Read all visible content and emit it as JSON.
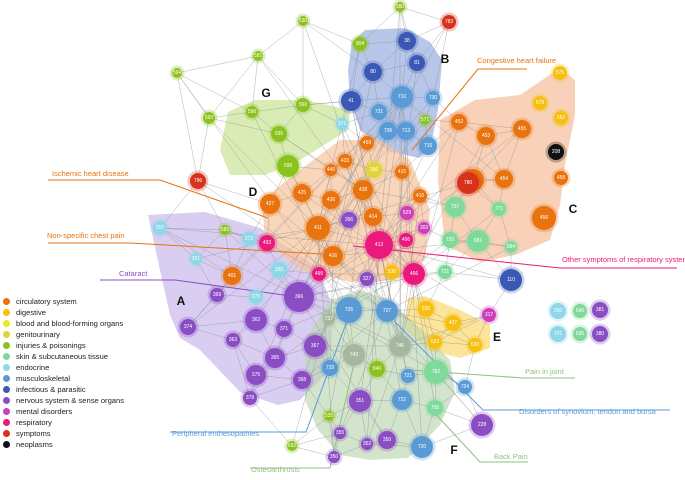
{
  "colors": {
    "circulatory": "#e8730f",
    "digestive": "#f6bf12",
    "blood": "#eaea1e",
    "genitourinary": "#e3d33a",
    "injuries": "#8cc21d",
    "skin": "#7fd99b",
    "endocrine": "#8ed6e8",
    "musculoskeletal": "#5b9bd5",
    "infectious": "#3a58b5",
    "nervous": "#8a4dc4",
    "mental": "#cc3fb8",
    "respiratory": "#e9197d",
    "symptoms": "#d9321c",
    "neoplasms": "#111111",
    "pale": "#a6b7a0"
  },
  "legend": [
    {
      "label": "circulatory system",
      "color": "circulatory"
    },
    {
      "label": "digestive",
      "color": "digestive"
    },
    {
      "label": "blood and blood-forming organs",
      "color": "blood"
    },
    {
      "label": "genitourinary",
      "color": "genitourinary"
    },
    {
      "label": "injuries & poisonings",
      "color": "injuries"
    },
    {
      "label": "skin & subcutaneous tissue",
      "color": "skin"
    },
    {
      "label": "endocrine",
      "color": "endocrine"
    },
    {
      "label": "musculoskeletal",
      "color": "musculoskeletal"
    },
    {
      "label": "infectious & parasitic",
      "color": "infectious"
    },
    {
      "label": "nervous system & sense organs",
      "color": "nervous"
    },
    {
      "label": "mental disorders",
      "color": "mental"
    },
    {
      "label": "respiratory",
      "color": "respiratory"
    },
    {
      "label": "symptoms",
      "color": "symptoms"
    },
    {
      "label": "neoplasms",
      "color": "neoplasms"
    }
  ],
  "clusters": {
    "A": "A",
    "B": "B",
    "C": "C",
    "D": "D",
    "E": "E",
    "F": "F",
    "G": "G"
  },
  "annotations": {
    "chf": "Congestive heart failure",
    "ihd": "Ischemic heart disease",
    "chest": "Non-specific chest pain",
    "cataract": "Cataract",
    "resp": "Other symptoms of respiratory system",
    "joint": "Pain in joint",
    "synovium": "Disorders of synovium, tendon and bursa",
    "enthes": "Peripheral enthesopathies",
    "osteo": "Osteoarthrosis",
    "back": "Back Pain"
  },
  "nodes": [
    {
      "id": "580",
      "c": "injuries"
    },
    {
      "id": "783",
      "c": "symptoms"
    },
    {
      "id": "904",
      "c": "injuries"
    },
    {
      "id": "38",
      "c": "infectious"
    },
    {
      "id": "530",
      "c": "injuries"
    },
    {
      "id": "581",
      "c": "injuries"
    },
    {
      "id": "594",
      "c": "injuries"
    },
    {
      "id": "80",
      "c": "infectious"
    },
    {
      "id": "81",
      "c": "infectious"
    },
    {
      "id": "575",
      "c": "digestive"
    },
    {
      "id": "41",
      "c": "infectious"
    },
    {
      "id": "710",
      "c": "musculoskeletal"
    },
    {
      "id": "730",
      "c": "musculoskeletal"
    },
    {
      "id": "731",
      "c": "musculoskeletal"
    },
    {
      "id": "736",
      "c": "musculoskeletal"
    },
    {
      "id": "713",
      "c": "musculoskeletal"
    },
    {
      "id": "716",
      "c": "musculoskeletal"
    },
    {
      "id": "571",
      "c": "injuries"
    },
    {
      "id": "578",
      "c": "digestive"
    },
    {
      "id": "562",
      "c": "digestive"
    },
    {
      "id": "453",
      "c": "circulatory"
    },
    {
      "id": "452",
      "c": "circulatory"
    },
    {
      "id": "455",
      "c": "circulatory"
    },
    {
      "id": "208",
      "c": "neoplasms"
    },
    {
      "id": "593",
      "c": "injuries"
    },
    {
      "id": "560",
      "c": "injuries"
    },
    {
      "id": "595",
      "c": "injuries"
    },
    {
      "id": "372",
      "c": "endocrine"
    },
    {
      "id": "596",
      "c": "injuries"
    },
    {
      "id": "599",
      "c": "injuries"
    },
    {
      "id": "796",
      "c": "symptoms"
    },
    {
      "id": "433",
      "c": "circulatory"
    },
    {
      "id": "459",
      "c": "circulatory"
    },
    {
      "id": "440",
      "c": "circulatory"
    },
    {
      "id": "286",
      "c": "genitourinary"
    },
    {
      "id": "415",
      "c": "circulatory"
    },
    {
      "id": "425",
      "c": "circulatory"
    },
    {
      "id": "428",
      "c": "circulatory"
    },
    {
      "id": "427",
      "c": "circulatory"
    },
    {
      "id": "436",
      "c": "circulatory"
    },
    {
      "id": "410",
      "c": "circulatory"
    },
    {
      "id": "412",
      "c": "circulatory"
    },
    {
      "id": "780",
      "c": "symptoms"
    },
    {
      "id": "454",
      "c": "circulatory"
    },
    {
      "id": "458",
      "c": "circulatory"
    },
    {
      "id": "456",
      "c": "circulatory"
    },
    {
      "id": "707",
      "c": "skin"
    },
    {
      "id": "771",
      "c": "skin"
    },
    {
      "id": "720",
      "c": "skin"
    },
    {
      "id": "681",
      "c": "skin"
    },
    {
      "id": "684",
      "c": "skin"
    },
    {
      "id": "257",
      "c": "endocrine"
    },
    {
      "id": "585",
      "c": "injuries"
    },
    {
      "id": "272",
      "c": "endocrine"
    },
    {
      "id": "411",
      "c": "circulatory"
    },
    {
      "id": "396",
      "c": "nervous"
    },
    {
      "id": "414",
      "c": "circulatory"
    },
    {
      "id": "529",
      "c": "mental"
    },
    {
      "id": "303",
      "c": "mental"
    },
    {
      "id": "493",
      "c": "respiratory"
    },
    {
      "id": "413",
      "c": "respiratory"
    },
    {
      "id": "496",
      "c": "respiratory"
    },
    {
      "id": "251",
      "c": "endocrine"
    },
    {
      "id": "401",
      "c": "circulatory"
    },
    {
      "id": "416",
      "c": "circulatory"
    },
    {
      "id": "495",
      "c": "respiratory"
    },
    {
      "id": "250",
      "c": "endocrine"
    },
    {
      "id": "327",
      "c": "nervous"
    },
    {
      "id": "530b",
      "t": "530",
      "c": "digestive"
    },
    {
      "id": "466",
      "c": "respiratory"
    },
    {
      "id": "721",
      "c": "skin"
    },
    {
      "id": "110",
      "c": "infectious"
    },
    {
      "id": "369",
      "c": "nervous"
    },
    {
      "id": "276",
      "c": "endocrine"
    },
    {
      "id": "366",
      "c": "nervous"
    },
    {
      "id": "726",
      "c": "musculoskeletal"
    },
    {
      "id": "727",
      "c": "musculoskeletal"
    },
    {
      "id": "535",
      "c": "digestive"
    },
    {
      "id": "317",
      "c": "mental"
    },
    {
      "id": "427b",
      "t": "427",
      "c": "digestive"
    },
    {
      "id": "374",
      "c": "nervous"
    },
    {
      "id": "362",
      "c": "nervous"
    },
    {
      "id": "363",
      "c": "nervous"
    },
    {
      "id": "371",
      "c": "nervous"
    },
    {
      "id": "737",
      "c": "pale"
    },
    {
      "id": "523",
      "c": "digestive"
    },
    {
      "id": "530c",
      "t": "530",
      "c": "digestive"
    },
    {
      "id": "367",
      "c": "nervous"
    },
    {
      "id": "365",
      "c": "nervous"
    },
    {
      "id": "743",
      "c": "pale"
    },
    {
      "id": "746",
      "c": "pale"
    },
    {
      "id": "840",
      "c": "injuries"
    },
    {
      "id": "782",
      "c": "skin"
    },
    {
      "id": "375",
      "c": "nervous"
    },
    {
      "id": "729",
      "c": "musculoskeletal"
    },
    {
      "id": "368",
      "c": "nervous"
    },
    {
      "id": "721b",
      "t": "721",
      "c": "musculoskeletal"
    },
    {
      "id": "724",
      "c": "musculoskeletal"
    },
    {
      "id": "378",
      "c": "nervous"
    },
    {
      "id": "351",
      "c": "nervous"
    },
    {
      "id": "722",
      "c": "musculoskeletal"
    },
    {
      "id": "755",
      "c": "skin"
    },
    {
      "id": "535b",
      "t": "535",
      "c": "injuries"
    },
    {
      "id": "228",
      "c": "nervous"
    },
    {
      "id": "355",
      "c": "nervous"
    },
    {
      "id": "352",
      "c": "nervous"
    },
    {
      "id": "350",
      "c": "nervous"
    },
    {
      "id": "350b",
      "t": "350",
      "c": "nervous"
    },
    {
      "id": "720b",
      "t": "720",
      "c": "musculoskeletal"
    },
    {
      "id": "692",
      "c": "injuries"
    },
    {
      "id": "250b",
      "t": "250",
      "c": "endocrine"
    },
    {
      "id": "696",
      "c": "skin"
    },
    {
      "id": "381",
      "c": "nervous"
    },
    {
      "id": "701",
      "c": "endocrine"
    },
    {
      "id": "695",
      "c": "skin"
    },
    {
      "id": "380",
      "c": "nervous"
    }
  ]
}
